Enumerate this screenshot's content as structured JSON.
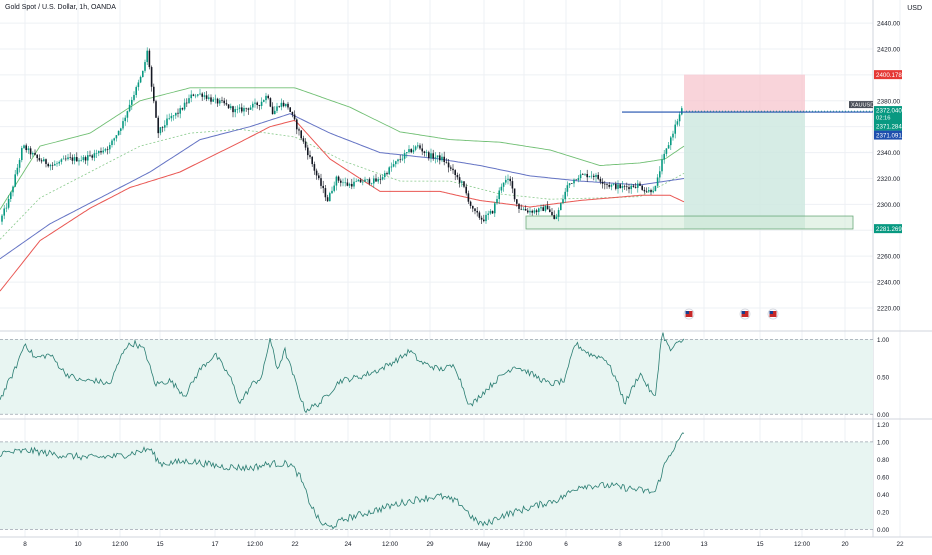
{
  "header": {
    "title": "Gold Spot / U.S. Dollar, 1h, OANDA",
    "currency": "USD"
  },
  "colors": {
    "bull": "#089981",
    "bear": "#131722",
    "ema_red": "#e53935",
    "ema_blue": "#3f51b5",
    "band_green": "#4caf50",
    "stop_zone": "#f7c6ce",
    "target_zone": "#cfe9e1",
    "level_line": "#1e4fae",
    "osc_line": "#2a7d72",
    "osc_fill": "#e8f5f2"
  },
  "chart_data": {
    "type": "candlestick",
    "symbol_label": "XAUUSD",
    "yticks": [
      "2440.00",
      "2420.00",
      "2400.00",
      "2380.00",
      "2360.00",
      "2340.00",
      "2320.00",
      "2300.00",
      "2280.00",
      "2260.00",
      "2240.00",
      "2220.00"
    ],
    "y_range": [
      2203,
      2447
    ],
    "xticks": [
      "8",
      "10",
      "12:00",
      "15",
      "17",
      "12:00",
      "22",
      "24",
      "12:00",
      "29",
      "May",
      "12:00",
      "6",
      "8",
      "12:00",
      "13",
      "15",
      "12:00",
      "20",
      "22"
    ],
    "price_labels": {
      "stop": "2400.178",
      "last": "2372.040",
      "countdown": "02:16",
      "entry": "2371.284",
      "ema": "2371.091",
      "target": "2281.269"
    },
    "keypoints": [
      [
        0,
        2283
      ],
      [
        12,
        2305
      ],
      [
        25,
        2345
      ],
      [
        40,
        2335
      ],
      [
        55,
        2330
      ],
      [
        70,
        2335
      ],
      [
        85,
        2335
      ],
      [
        100,
        2340
      ],
      [
        112,
        2345
      ],
      [
        125,
        2363
      ],
      [
        133,
        2380
      ],
      [
        140,
        2392
      ],
      [
        145,
        2402
      ],
      [
        150,
        2420
      ],
      [
        153,
        2395
      ],
      [
        160,
        2355
      ],
      [
        170,
        2365
      ],
      [
        182,
        2372
      ],
      [
        195,
        2385
      ],
      [
        205,
        2385
      ],
      [
        215,
        2380
      ],
      [
        225,
        2378
      ],
      [
        238,
        2372
      ],
      [
        252,
        2375
      ],
      [
        262,
        2378
      ],
      [
        270,
        2385
      ],
      [
        275,
        2370
      ],
      [
        282,
        2378
      ],
      [
        290,
        2376
      ],
      [
        300,
        2358
      ],
      [
        310,
        2340
      ],
      [
        320,
        2320
      ],
      [
        330,
        2303
      ],
      [
        338,
        2320
      ],
      [
        350,
        2315
      ],
      [
        365,
        2318
      ],
      [
        380,
        2318
      ],
      [
        395,
        2330
      ],
      [
        410,
        2340
      ],
      [
        420,
        2345
      ],
      [
        430,
        2338
      ],
      [
        445,
        2335
      ],
      [
        455,
        2325
      ],
      [
        465,
        2315
      ],
      [
        475,
        2295
      ],
      [
        485,
        2288
      ],
      [
        495,
        2295
      ],
      [
        505,
        2318
      ],
      [
        512,
        2318
      ],
      [
        520,
        2298
      ],
      [
        530,
        2295
      ],
      [
        540,
        2295
      ],
      [
        550,
        2298
      ],
      [
        557,
        2287
      ],
      [
        563,
        2300
      ],
      [
        570,
        2315
      ],
      [
        580,
        2322
      ],
      [
        595,
        2323
      ],
      [
        610,
        2315
      ],
      [
        625,
        2313
      ],
      [
        640,
        2315
      ],
      [
        650,
        2310
      ],
      [
        658,
        2313
      ],
      [
        663,
        2330
      ],
      [
        670,
        2345
      ],
      [
        678,
        2362
      ],
      [
        684,
        2373
      ]
    ],
    "ema_red_points": [
      [
        0,
        2233
      ],
      [
        40,
        2272
      ],
      [
        90,
        2297
      ],
      [
        130,
        2313
      ],
      [
        180,
        2325
      ],
      [
        240,
        2348
      ],
      [
        270,
        2360
      ],
      [
        295,
        2365
      ],
      [
        330,
        2335
      ],
      [
        380,
        2310
      ],
      [
        440,
        2310
      ],
      [
        480,
        2303
      ],
      [
        530,
        2298
      ],
      [
        580,
        2303
      ],
      [
        640,
        2307
      ],
      [
        670,
        2307
      ],
      [
        684,
        2302
      ]
    ],
    "ema_blue_points": [
      [
        0,
        2258
      ],
      [
        50,
        2285
      ],
      [
        100,
        2305
      ],
      [
        150,
        2325
      ],
      [
        200,
        2350
      ],
      [
        250,
        2360
      ],
      [
        290,
        2370
      ],
      [
        330,
        2355
      ],
      [
        380,
        2340
      ],
      [
        440,
        2335
      ],
      [
        480,
        2330
      ],
      [
        530,
        2322
      ],
      [
        580,
        2318
      ],
      [
        640,
        2315
      ],
      [
        684,
        2320
      ]
    ],
    "band_upper_points": [
      [
        0,
        2296
      ],
      [
        40,
        2345
      ],
      [
        90,
        2355
      ],
      [
        140,
        2380
      ],
      [
        190,
        2390
      ],
      [
        240,
        2390
      ],
      [
        295,
        2390
      ],
      [
        350,
        2375
      ],
      [
        400,
        2356
      ],
      [
        450,
        2350
      ],
      [
        500,
        2348
      ],
      [
        550,
        2342
      ],
      [
        600,
        2330
      ],
      [
        640,
        2332
      ],
      [
        665,
        2335
      ],
      [
        684,
        2345
      ]
    ],
    "band_lower_points": [
      [
        0,
        2273
      ],
      [
        40,
        2305
      ],
      [
        90,
        2325
      ],
      [
        140,
        2345
      ],
      [
        190,
        2355
      ],
      [
        240,
        2358
      ],
      [
        295,
        2352
      ],
      [
        345,
        2333
      ],
      [
        400,
        2318
      ],
      [
        450,
        2318
      ],
      [
        500,
        2308
      ],
      [
        550,
        2304
      ],
      [
        600,
        2305
      ],
      [
        640,
        2306
      ],
      [
        665,
        2316
      ],
      [
        684,
        2324
      ]
    ],
    "position": {
      "entry": 2371.284,
      "stop": 2400.178,
      "target": 2281.269
    },
    "support_zone": {
      "top": 2291,
      "bottom": 2281
    },
    "event_markers": 3,
    "oscillator1": {
      "ticks": [
        "1.00",
        "0.50",
        "0.00"
      ],
      "range": [
        -0.05,
        1.1
      ],
      "upper_level": 1.0,
      "lower_level": 0.0,
      "keypoints": [
        [
          0,
          0.2
        ],
        [
          15,
          0.6
        ],
        [
          25,
          0.95
        ],
        [
          35,
          0.75
        ],
        [
          50,
          0.8
        ],
        [
          65,
          0.55
        ],
        [
          80,
          0.45
        ],
        [
          95,
          0.45
        ],
        [
          110,
          0.4
        ],
        [
          125,
          0.9
        ],
        [
          135,
          0.95
        ],
        [
          145,
          0.85
        ],
        [
          155,
          0.4
        ],
        [
          170,
          0.45
        ],
        [
          185,
          0.25
        ],
        [
          200,
          0.6
        ],
        [
          215,
          0.8
        ],
        [
          230,
          0.5
        ],
        [
          240,
          0.15
        ],
        [
          252,
          0.4
        ],
        [
          262,
          0.5
        ],
        [
          270,
          1.02
        ],
        [
          277,
          0.6
        ],
        [
          285,
          0.85
        ],
        [
          295,
          0.45
        ],
        [
          305,
          0.05
        ],
        [
          320,
          0.15
        ],
        [
          340,
          0.45
        ],
        [
          360,
          0.5
        ],
        [
          380,
          0.6
        ],
        [
          400,
          0.75
        ],
        [
          410,
          0.85
        ],
        [
          420,
          0.7
        ],
        [
          440,
          0.6
        ],
        [
          455,
          0.65
        ],
        [
          470,
          0.1
        ],
        [
          480,
          0.25
        ],
        [
          500,
          0.5
        ],
        [
          515,
          0.65
        ],
        [
          530,
          0.55
        ],
        [
          550,
          0.4
        ],
        [
          565,
          0.45
        ],
        [
          575,
          0.95
        ],
        [
          590,
          0.8
        ],
        [
          605,
          0.75
        ],
        [
          615,
          0.5
        ],
        [
          625,
          0.15
        ],
        [
          640,
          0.55
        ],
        [
          655,
          0.2
        ],
        [
          662,
          1.1
        ],
        [
          670,
          0.85
        ],
        [
          678,
          0.95
        ],
        [
          685,
          1.0
        ]
      ]
    },
    "oscillator2": {
      "ticks": [
        "1.20",
        "1.00",
        "0.80",
        "0.60",
        "0.40",
        "0.20",
        "0.00"
      ],
      "range": [
        -0.03,
        1.25
      ],
      "upper_level": 1.0,
      "lower_level": 0.0,
      "keypoints": [
        [
          0,
          0.87
        ],
        [
          30,
          0.9
        ],
        [
          60,
          0.85
        ],
        [
          90,
          0.82
        ],
        [
          120,
          0.84
        ],
        [
          150,
          0.92
        ],
        [
          160,
          0.75
        ],
        [
          190,
          0.78
        ],
        [
          220,
          0.72
        ],
        [
          250,
          0.7
        ],
        [
          270,
          0.75
        ],
        [
          290,
          0.75
        ],
        [
          300,
          0.6
        ],
        [
          310,
          0.3
        ],
        [
          320,
          0.08
        ],
        [
          330,
          0.02
        ],
        [
          345,
          0.12
        ],
        [
          370,
          0.2
        ],
        [
          400,
          0.3
        ],
        [
          420,
          0.35
        ],
        [
          440,
          0.38
        ],
        [
          460,
          0.3
        ],
        [
          475,
          0.1
        ],
        [
          485,
          0.05
        ],
        [
          500,
          0.15
        ],
        [
          530,
          0.25
        ],
        [
          560,
          0.35
        ],
        [
          580,
          0.5
        ],
        [
          610,
          0.5
        ],
        [
          640,
          0.45
        ],
        [
          655,
          0.42
        ],
        [
          665,
          0.75
        ],
        [
          672,
          0.9
        ],
        [
          678,
          1.0
        ],
        [
          684,
          1.1
        ]
      ]
    }
  }
}
